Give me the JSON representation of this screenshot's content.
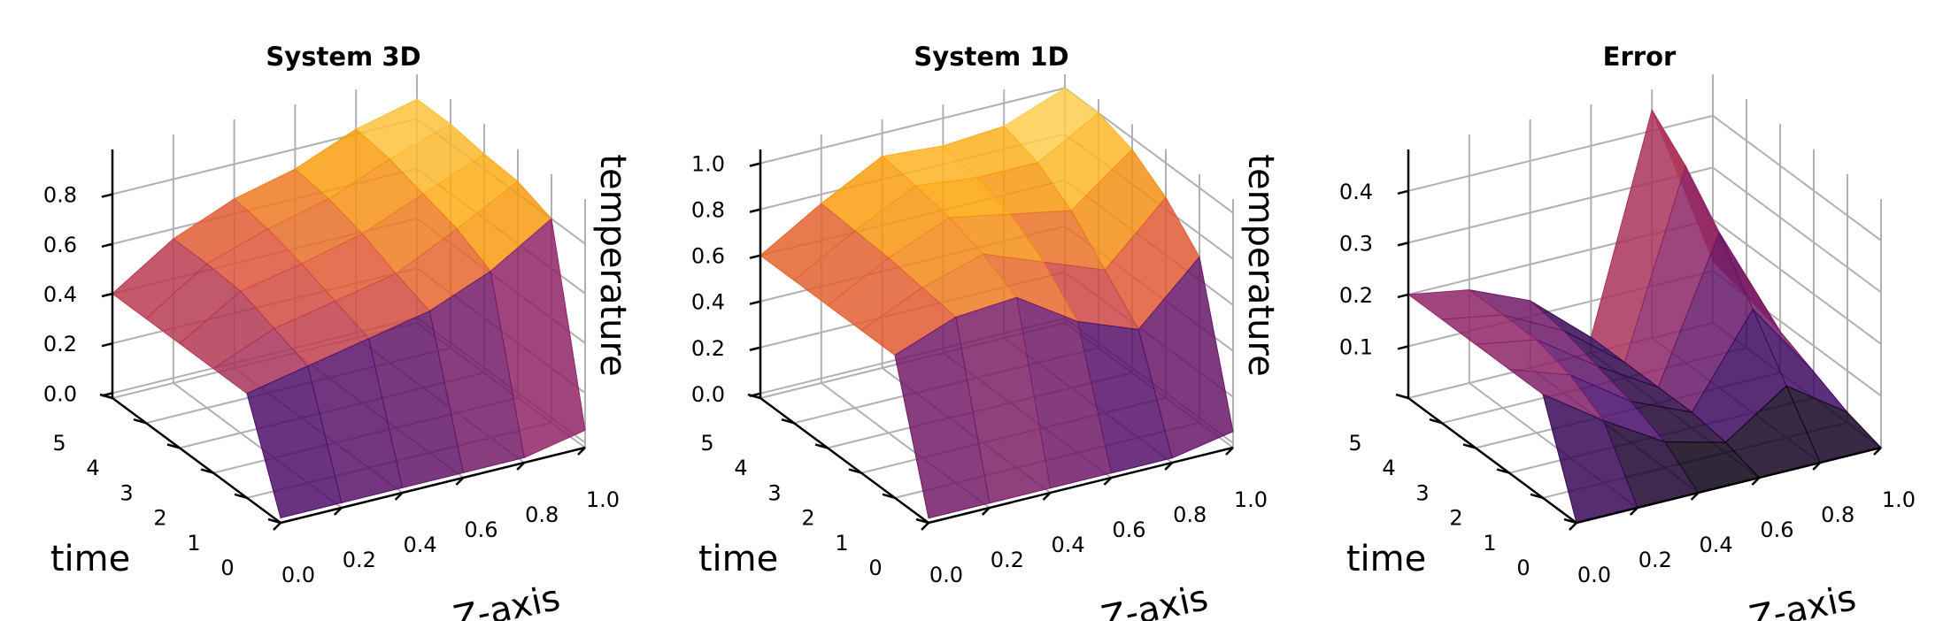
{
  "chart_data": [
    {
      "type": "surface",
      "title": "System 3D",
      "xlabel": "Z-axis",
      "ylabel": "time",
      "zlabel": "temperature",
      "x": [
        0,
        0.2,
        0.4,
        0.6,
        0.8,
        1.0
      ],
      "y": [
        0,
        1,
        2,
        3,
        4,
        5
      ],
      "values": [
        [
          0,
          0,
          0,
          0,
          0,
          0.05
        ],
        [
          0.4,
          0.45,
          0.5,
          0.55,
          0.65,
          0.8
        ],
        [
          0.4,
          0.5,
          0.55,
          0.6,
          0.72,
          0.85
        ],
        [
          0.4,
          0.55,
          0.6,
          0.66,
          0.76,
          0.86
        ],
        [
          0.4,
          0.56,
          0.64,
          0.7,
          0.8,
          0.88
        ],
        [
          0.4,
          0.56,
          0.66,
          0.72,
          0.82,
          0.88
        ]
      ],
      "xlim": [
        0,
        1
      ],
      "ylim": [
        0,
        5
      ],
      "zlim": [
        -0.02,
        0.98
      ],
      "xticks": [
        {
          "value": 0,
          "label": "0.0"
        },
        {
          "value": 0.2,
          "label": "0.2"
        },
        {
          "value": 0.4,
          "label": "0.4"
        },
        {
          "value": 0.6,
          "label": "0.6"
        },
        {
          "value": 0.8,
          "label": "0.8"
        },
        {
          "value": 1,
          "label": "1.0"
        }
      ],
      "yticks": [
        0,
        1,
        2,
        3,
        4,
        5
      ],
      "zticks": [
        {
          "value": 0,
          "label": "0.0"
        },
        {
          "value": 0.2,
          "label": "0.2"
        },
        {
          "value": 0.4,
          "label": "0.4"
        },
        {
          "value": 0.6,
          "label": "0.6"
        },
        {
          "value": 0.8,
          "label": "0.8"
        }
      ],
      "colormap": "inferno",
      "grid": true
    },
    {
      "type": "surface",
      "title": "System 1D",
      "xlabel": "Z-axis",
      "ylabel": "time",
      "zlabel": "temperature",
      "x": [
        0,
        0.2,
        0.4,
        0.6,
        0.8,
        1.0
      ],
      "y": [
        0,
        1,
        2,
        3,
        4,
        5
      ],
      "values": [
        [
          0,
          0,
          0,
          0,
          0,
          0.05
        ],
        [
          0.6,
          0.7,
          0.72,
          0.55,
          0.45,
          0.7
        ],
        [
          0.6,
          0.72,
          0.8,
          0.7,
          0.6,
          0.85
        ],
        [
          0.6,
          0.74,
          0.85,
          0.8,
          0.75,
          0.95
        ],
        [
          0.6,
          0.75,
          0.88,
          0.85,
          0.85,
          1.0
        ],
        [
          0.6,
          0.76,
          0.9,
          0.88,
          0.9,
          1.0
        ]
      ],
      "xlim": [
        0,
        1
      ],
      "ylim": [
        0,
        5
      ],
      "zlim": [
        -0.02,
        1.06
      ],
      "xticks": [
        {
          "value": 0,
          "label": "0.0"
        },
        {
          "value": 0.2,
          "label": "0.2"
        },
        {
          "value": 0.4,
          "label": "0.4"
        },
        {
          "value": 0.6,
          "label": "0.6"
        },
        {
          "value": 0.8,
          "label": "0.8"
        },
        {
          "value": 1,
          "label": "1.0"
        }
      ],
      "yticks": [
        0,
        1,
        2,
        3,
        4,
        5
      ],
      "zticks": [
        {
          "value": 0,
          "label": "0.0"
        },
        {
          "value": 0.2,
          "label": "0.2"
        },
        {
          "value": 0.4,
          "label": "0.4"
        },
        {
          "value": 0.6,
          "label": "0.6"
        },
        {
          "value": 0.8,
          "label": "0.8"
        },
        {
          "value": 1,
          "label": "1.0"
        }
      ],
      "colormap": "inferno",
      "grid": true
    },
    {
      "type": "surface",
      "title": "Error",
      "xlabel": "Z-axis",
      "ylabel": "time",
      "zlabel": null,
      "x": [
        0,
        0.2,
        0.4,
        0.6,
        0.8,
        1.0
      ],
      "y": [
        0,
        1,
        2,
        3,
        4,
        5
      ],
      "values": [
        [
          0,
          0,
          0,
          0,
          0,
          0
        ],
        [
          0.2,
          0.12,
          0.05,
          0.02,
          0.1,
          0.02
        ],
        [
          0.2,
          0.16,
          0.08,
          0.03,
          0.2,
          0.05
        ],
        [
          0.2,
          0.18,
          0.1,
          0.03,
          0.3,
          0.08
        ],
        [
          0.2,
          0.18,
          0.12,
          0.03,
          0.38,
          0.1
        ],
        [
          0.2,
          0.18,
          0.13,
          0.03,
          0.44,
          0.12
        ]
      ],
      "xlim": [
        0,
        1
      ],
      "ylim": [
        0,
        5
      ],
      "zlim": [
        0,
        0.48
      ],
      "xticks": [
        {
          "value": 0,
          "label": "0.0"
        },
        {
          "value": 0.2,
          "label": "0.2"
        },
        {
          "value": 0.4,
          "label": "0.4"
        },
        {
          "value": 0.6,
          "label": "0.6"
        },
        {
          "value": 0.8,
          "label": "0.8"
        },
        {
          "value": 1,
          "label": "1.0"
        }
      ],
      "yticks": [
        0,
        1,
        2,
        3,
        4,
        5
      ],
      "zticks": [
        0.1,
        0.2,
        0.3,
        0.4
      ],
      "colormap": "inferno",
      "grid": true
    }
  ]
}
